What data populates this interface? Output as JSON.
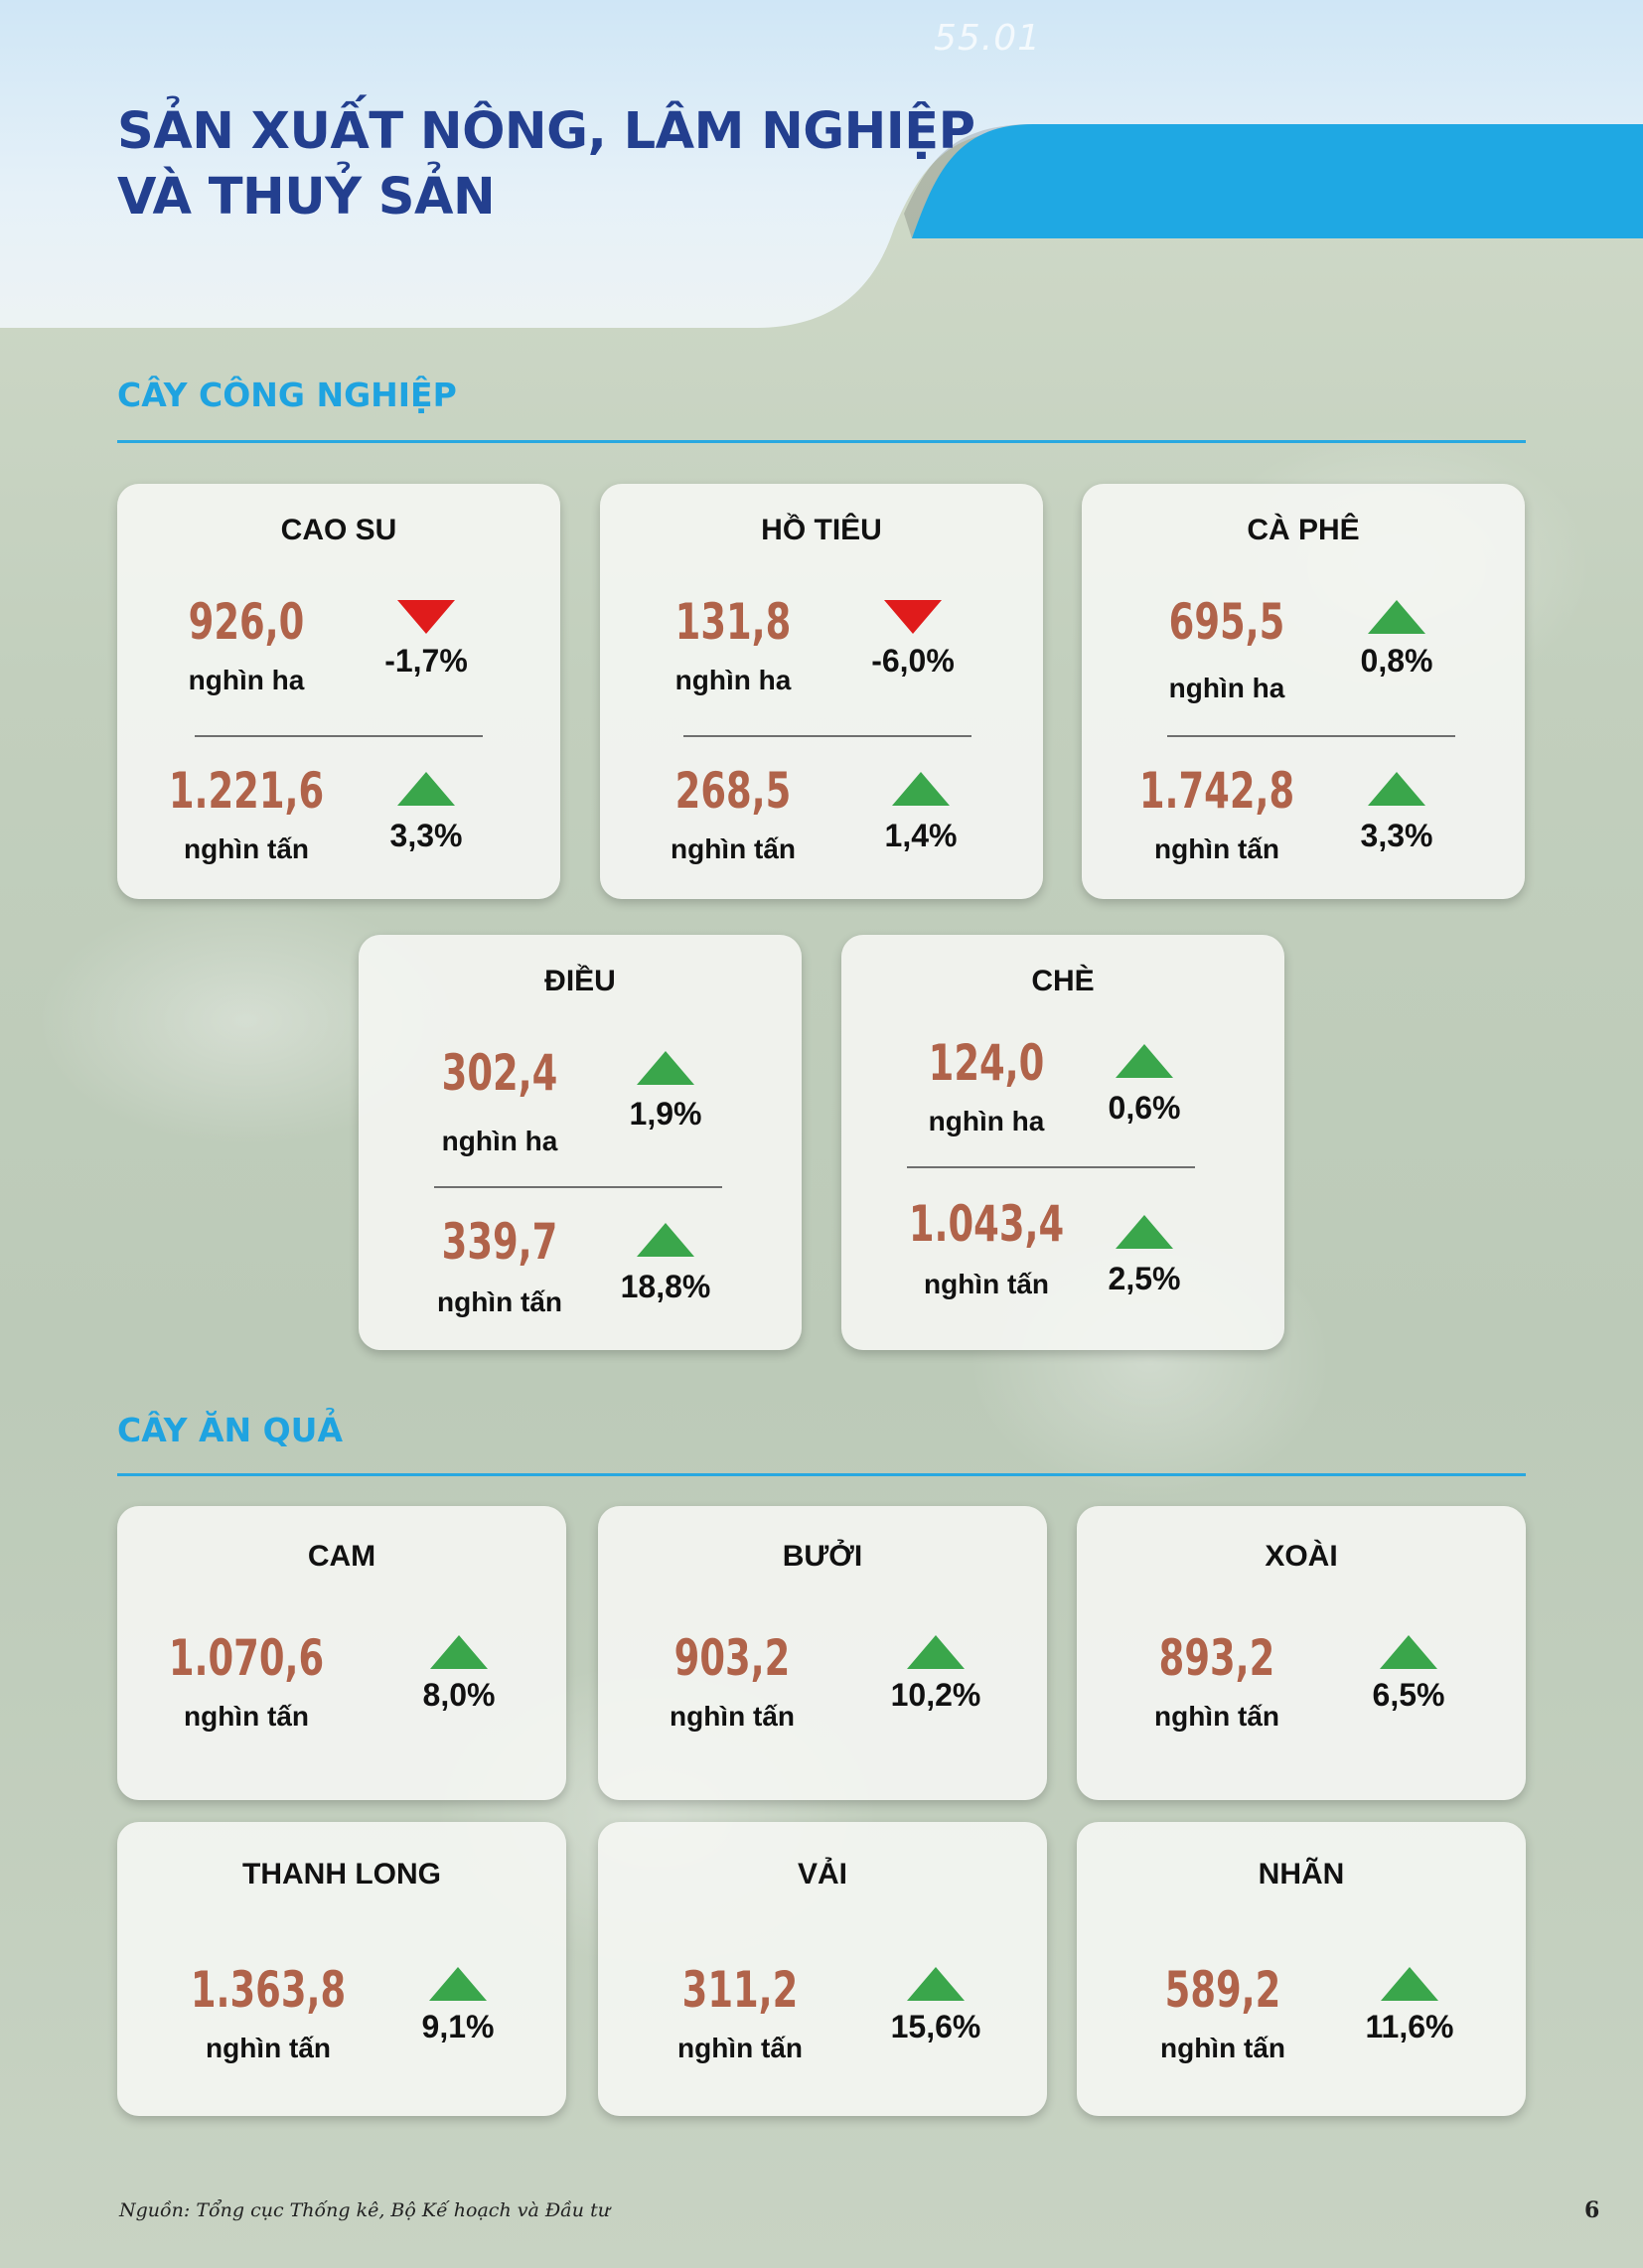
{
  "header": {
    "deco_number": "55.01",
    "title_line1": "SẢN XUẤT NÔNG, LÂM NGHIỆP",
    "title_line2": "VÀ THUỶ SẢN"
  },
  "sections": {
    "industrial": "CÂY CÔNG NGHIỆP",
    "fruit": "CÂY ĂN QUẢ"
  },
  "industrial_crops": [
    {
      "name": "CAO SU",
      "area": {
        "value": "926,0",
        "unit": "nghìn ha",
        "change": "-1,7%",
        "trend": "down"
      },
      "output": {
        "value": "1.221,6",
        "unit": "nghìn tấn",
        "change": "3,3%",
        "trend": "up"
      }
    },
    {
      "name": "HỒ TIÊU",
      "area": {
        "value": "131,8",
        "unit": "nghìn ha",
        "change": "-6,0%",
        "trend": "down"
      },
      "output": {
        "value": "268,5",
        "unit": "nghìn tấn",
        "change": "1,4%",
        "trend": "up"
      }
    },
    {
      "name": "CÀ PHÊ",
      "area": {
        "value": "695,5",
        "unit": "nghìn ha",
        "change": "0,8%",
        "trend": "up"
      },
      "output": {
        "value": "1.742,8",
        "unit": "nghìn tấn",
        "change": "3,3%",
        "trend": "up"
      }
    },
    {
      "name": "ĐIỀU",
      "area": {
        "value": "302,4",
        "unit": "nghìn ha",
        "change": "1,9%",
        "trend": "up"
      },
      "output": {
        "value": "339,7",
        "unit": "nghìn tấn",
        "change": "18,8%",
        "trend": "up"
      }
    },
    {
      "name": "CHÈ",
      "area": {
        "value": "124,0",
        "unit": "nghìn ha",
        "change": "0,6%",
        "trend": "up"
      },
      "output": {
        "value": "1.043,4",
        "unit": "nghìn tấn",
        "change": "2,5%",
        "trend": "up"
      }
    }
  ],
  "fruit_crops": [
    {
      "name": "CAM",
      "value": "1.070,6",
      "unit": "nghìn tấn",
      "change": "8,0%",
      "trend": "up"
    },
    {
      "name": "BƯỞI",
      "value": "903,2",
      "unit": "nghìn tấn",
      "change": "10,2%",
      "trend": "up"
    },
    {
      "name": "XOÀI",
      "value": "893,2",
      "unit": "nghìn tấn",
      "change": "6,5%",
      "trend": "up"
    },
    {
      "name": "THANH LONG",
      "value": "1.363,8",
      "unit": "nghìn tấn",
      "change": "9,1%",
      "trend": "up"
    },
    {
      "name": "VẢI",
      "value": "311,2",
      "unit": "nghìn tấn",
      "change": "15,6%",
      "trend": "up"
    },
    {
      "name": "NHÃN",
      "value": "589,2",
      "unit": "nghìn tấn",
      "change": "11,6%",
      "trend": "up"
    }
  ],
  "footer": {
    "source": "Nguồn: Tổng cục Thống kê, Bộ Kế hoạch và Đầu tư",
    "page_number": "6"
  },
  "colors": {
    "title": "#233f8f",
    "section": "#1fa3e0",
    "value": "#b0634a",
    "up": "#3aa64b",
    "down": "#e01b1b"
  }
}
